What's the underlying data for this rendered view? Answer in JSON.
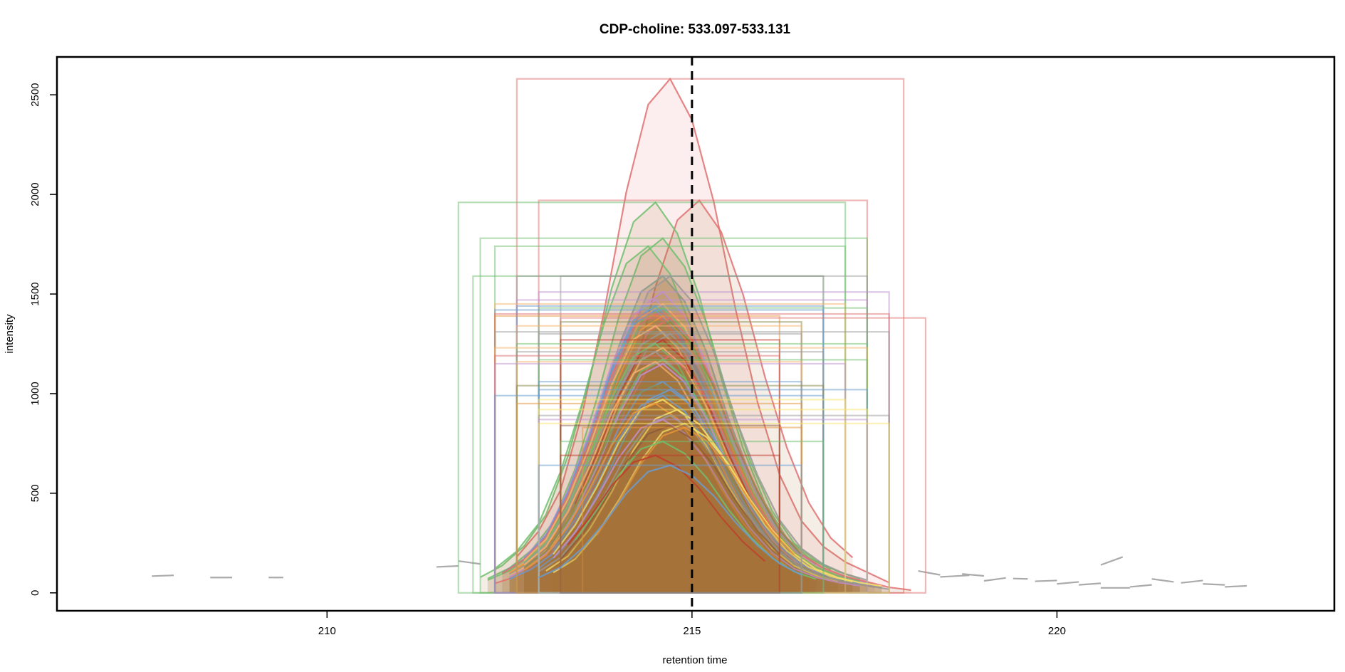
{
  "chart_data": {
    "type": "line",
    "title": "CDP-choline: 533.097-533.131",
    "xlabel": "retention time",
    "ylabel": "intensity",
    "xlim": [
      206.3,
      223.8
    ],
    "ylim": [
      -90,
      2690
    ],
    "x_ticks": [
      210,
      215,
      220
    ],
    "x_tick_labels": [
      "210",
      "215",
      "220"
    ],
    "y_ticks": [
      0,
      500,
      1000,
      1500,
      2000,
      2500
    ],
    "y_tick_labels": [
      "0",
      "500",
      "1000",
      "1500",
      "2000",
      "2500"
    ],
    "reference_line": {
      "x": 215.0,
      "style": "dashed",
      "color": "#000000"
    },
    "grid": false,
    "legend": "none",
    "peak_shape": {
      "x": [
        212.3,
        212.6,
        212.9,
        213.2,
        213.5,
        213.8,
        214.1,
        214.4,
        214.7,
        215.0,
        215.3,
        215.6,
        215.9,
        216.2,
        216.5,
        216.8,
        217.1,
        217.4,
        217.7,
        218.0
      ],
      "relative_intensity": [
        0.04,
        0.07,
        0.12,
        0.2,
        0.35,
        0.55,
        0.78,
        0.95,
        1.0,
        0.92,
        0.76,
        0.55,
        0.37,
        0.23,
        0.14,
        0.09,
        0.06,
        0.04,
        0.02,
        0.01
      ]
    },
    "series": [
      {
        "color": "#E07070",
        "rt_min": 212.6,
        "rt_max": 217.9,
        "apex_rt": 214.7,
        "max_intensity": 2580,
        "filled": true
      },
      {
        "color": "#E07070",
        "rt_min": 212.9,
        "rt_max": 217.4,
        "apex_rt": 215.1,
        "max_intensity": 1970
      },
      {
        "color": "#6FBF6F",
        "rt_min": 211.8,
        "rt_max": 217.1,
        "apex_rt": 214.5,
        "max_intensity": 1960
      },
      {
        "color": "#6FBF6F",
        "rt_min": 212.1,
        "rt_max": 217.4,
        "apex_rt": 214.6,
        "max_intensity": 1780
      },
      {
        "color": "#6FBF6F",
        "rt_min": 212.3,
        "rt_max": 217.1,
        "apex_rt": 214.4,
        "max_intensity": 1740
      },
      {
        "color": "#6FBF6F",
        "rt_min": 212.0,
        "rt_max": 216.8,
        "apex_rt": 214.6,
        "max_intensity": 1590
      },
      {
        "color": "#999999",
        "rt_min": 213.2,
        "rt_max": 216.8,
        "apex_rt": 214.6,
        "max_intensity": 1590
      },
      {
        "color": "#999999",
        "rt_min": 212.6,
        "rt_max": 217.4,
        "apex_rt": 214.7,
        "max_intensity": 1590
      },
      {
        "color": "#C08FD0",
        "rt_min": 212.9,
        "rt_max": 217.7,
        "apex_rt": 214.6,
        "max_intensity": 1510
      },
      {
        "color": "#C08FD0",
        "rt_min": 212.6,
        "rt_max": 217.4,
        "apex_rt": 214.5,
        "max_intensity": 1470
      },
      {
        "color": "#F7B26A",
        "rt_min": 212.3,
        "rt_max": 217.1,
        "apex_rt": 214.6,
        "max_intensity": 1450
      },
      {
        "color": "#6A9BD0",
        "rt_min": 212.6,
        "rt_max": 216.8,
        "apex_rt": 214.5,
        "max_intensity": 1440
      },
      {
        "color": "#6FBF6F",
        "rt_min": 212.9,
        "rt_max": 217.4,
        "apex_rt": 214.6,
        "max_intensity": 1430
      },
      {
        "color": "#6A9BD0",
        "rt_min": 212.3,
        "rt_max": 216.8,
        "apex_rt": 214.5,
        "max_intensity": 1420
      },
      {
        "color": "#E07070",
        "rt_min": 212.3,
        "rt_max": 217.7,
        "apex_rt": 214.5,
        "max_intensity": 1400
      },
      {
        "color": "#E8943A",
        "rt_min": 212.3,
        "rt_max": 216.2,
        "apex_rt": 214.6,
        "max_intensity": 1390
      },
      {
        "color": "#E07070",
        "rt_min": 213.2,
        "rt_max": 218.2,
        "apex_rt": 214.7,
        "max_intensity": 1380
      },
      {
        "color": "#8A8A4A",
        "rt_min": 213.2,
        "rt_max": 216.5,
        "apex_rt": 214.7,
        "max_intensity": 1360
      },
      {
        "color": "#F7B26A",
        "rt_min": 212.6,
        "rt_max": 216.5,
        "apex_rt": 214.5,
        "max_intensity": 1340
      },
      {
        "color": "#999999",
        "rt_min": 212.3,
        "rt_max": 217.7,
        "apex_rt": 214.6,
        "max_intensity": 1310
      },
      {
        "color": "#999999",
        "rt_min": 212.9,
        "rt_max": 216.5,
        "apex_rt": 214.7,
        "max_intensity": 1300
      },
      {
        "color": "#C0392B",
        "rt_min": 213.2,
        "rt_max": 216.2,
        "apex_rt": 214.6,
        "max_intensity": 1270
      },
      {
        "color": "#6FBF6F",
        "rt_min": 212.6,
        "rt_max": 217.4,
        "apex_rt": 214.5,
        "max_intensity": 1250
      },
      {
        "color": "#F7B26A",
        "rt_min": 212.3,
        "rt_max": 217.4,
        "apex_rt": 214.6,
        "max_intensity": 1230
      },
      {
        "color": "#999999",
        "rt_min": 212.6,
        "rt_max": 216.8,
        "apex_rt": 214.5,
        "max_intensity": 1210
      },
      {
        "color": "#E07070",
        "rt_min": 212.3,
        "rt_max": 216.2,
        "apex_rt": 214.7,
        "max_intensity": 1190
      },
      {
        "color": "#6FBF6F",
        "rt_min": 212.9,
        "rt_max": 217.4,
        "apex_rt": 214.6,
        "max_intensity": 1170
      },
      {
        "color": "#F7B26A",
        "rt_min": 212.6,
        "rt_max": 216.5,
        "apex_rt": 214.5,
        "max_intensity": 1160
      },
      {
        "color": "#C08FD0",
        "rt_min": 212.3,
        "rt_max": 217.1,
        "apex_rt": 214.6,
        "max_intensity": 1150
      },
      {
        "color": "#6A9BD0",
        "rt_min": 212.9,
        "rt_max": 216.5,
        "apex_rt": 214.6,
        "max_intensity": 1060
      },
      {
        "color": "#8A8A4A",
        "rt_min": 212.6,
        "rt_max": 216.8,
        "apex_rt": 214.5,
        "max_intensity": 1040
      },
      {
        "color": "#6A9BD0",
        "rt_min": 212.9,
        "rt_max": 217.4,
        "apex_rt": 214.7,
        "max_intensity": 1020
      },
      {
        "color": "#6A9BD0",
        "rt_min": 212.3,
        "rt_max": 216.8,
        "apex_rt": 214.6,
        "max_intensity": 990
      },
      {
        "color": "#F7E36A",
        "rt_min": 212.9,
        "rt_max": 217.1,
        "apex_rt": 214.6,
        "max_intensity": 970
      },
      {
        "color": "#E8943A",
        "rt_min": 212.6,
        "rt_max": 216.5,
        "apex_rt": 214.5,
        "max_intensity": 950
      },
      {
        "color": "#F7E36A",
        "rt_min": 212.9,
        "rt_max": 217.4,
        "apex_rt": 214.8,
        "max_intensity": 920
      },
      {
        "color": "#999999",
        "rt_min": 212.9,
        "rt_max": 217.7,
        "apex_rt": 214.7,
        "max_intensity": 890
      },
      {
        "color": "#C08FD0",
        "rt_min": 212.9,
        "rt_max": 217.4,
        "apex_rt": 214.6,
        "max_intensity": 870
      },
      {
        "color": "#F7E36A",
        "rt_min": 212.9,
        "rt_max": 217.7,
        "apex_rt": 214.9,
        "max_intensity": 850
      },
      {
        "color": "#8B5A3C",
        "rt_min": 213.2,
        "rt_max": 216.2,
        "apex_rt": 214.7,
        "max_intensity": 840
      },
      {
        "color": "#E8943A",
        "rt_min": 213.5,
        "rt_max": 216.5,
        "apex_rt": 214.9,
        "max_intensity": 830
      },
      {
        "color": "#6FBF6F",
        "rt_min": 213.2,
        "rt_max": 216.8,
        "apex_rt": 214.6,
        "max_intensity": 760
      },
      {
        "color": "#C0392B",
        "rt_min": 213.2,
        "rt_max": 216.2,
        "apex_rt": 214.5,
        "max_intensity": 690
      },
      {
        "color": "#6A9BD0",
        "rt_min": 212.9,
        "rt_max": 216.5,
        "apex_rt": 214.7,
        "max_intensity": 640
      }
    ],
    "noise_segments": [
      {
        "x": [
          207.6,
          207.9
        ],
        "y": [
          84,
          88
        ]
      },
      {
        "x": [
          208.4,
          208.7
        ],
        "y": [
          77,
          77
        ]
      },
      {
        "x": [
          209.2,
          209.4
        ],
        "y": [
          77,
          77
        ]
      },
      {
        "x": [
          211.5,
          211.8
        ],
        "y": [
          130,
          135
        ]
      },
      {
        "x": [
          211.8,
          212.1
        ],
        "y": [
          160,
          145
        ]
      },
      {
        "x": [
          218.1,
          218.4
        ],
        "y": [
          110,
          90
        ]
      },
      {
        "x": [
          218.4,
          218.8
        ],
        "y": [
          80,
          88
        ]
      },
      {
        "x": [
          218.7,
          219.0
        ],
        "y": [
          95,
          85
        ]
      },
      {
        "x": [
          219.0,
          219.3
        ],
        "y": [
          60,
          75
        ]
      },
      {
        "x": [
          219.4,
          219.6
        ],
        "y": [
          72,
          70
        ]
      },
      {
        "x": [
          219.7,
          220.0
        ],
        "y": [
          58,
          62
        ]
      },
      {
        "x": [
          220.0,
          220.3
        ],
        "y": [
          45,
          55
        ]
      },
      {
        "x": [
          220.3,
          220.6
        ],
        "y": [
          40,
          48
        ]
      },
      {
        "x": [
          220.6,
          220.9
        ],
        "y": [
          140,
          180
        ]
      },
      {
        "x": [
          220.6,
          221.0
        ],
        "y": [
          25,
          25
        ]
      },
      {
        "x": [
          221.0,
          221.3
        ],
        "y": [
          30,
          40
        ]
      },
      {
        "x": [
          221.3,
          221.6
        ],
        "y": [
          70,
          55
        ]
      },
      {
        "x": [
          221.7,
          222.0
        ],
        "y": [
          50,
          62
        ]
      },
      {
        "x": [
          222.0,
          222.3
        ],
        "y": [
          45,
          40
        ]
      },
      {
        "x": [
          222.3,
          222.6
        ],
        "y": [
          30,
          35
        ]
      }
    ]
  }
}
